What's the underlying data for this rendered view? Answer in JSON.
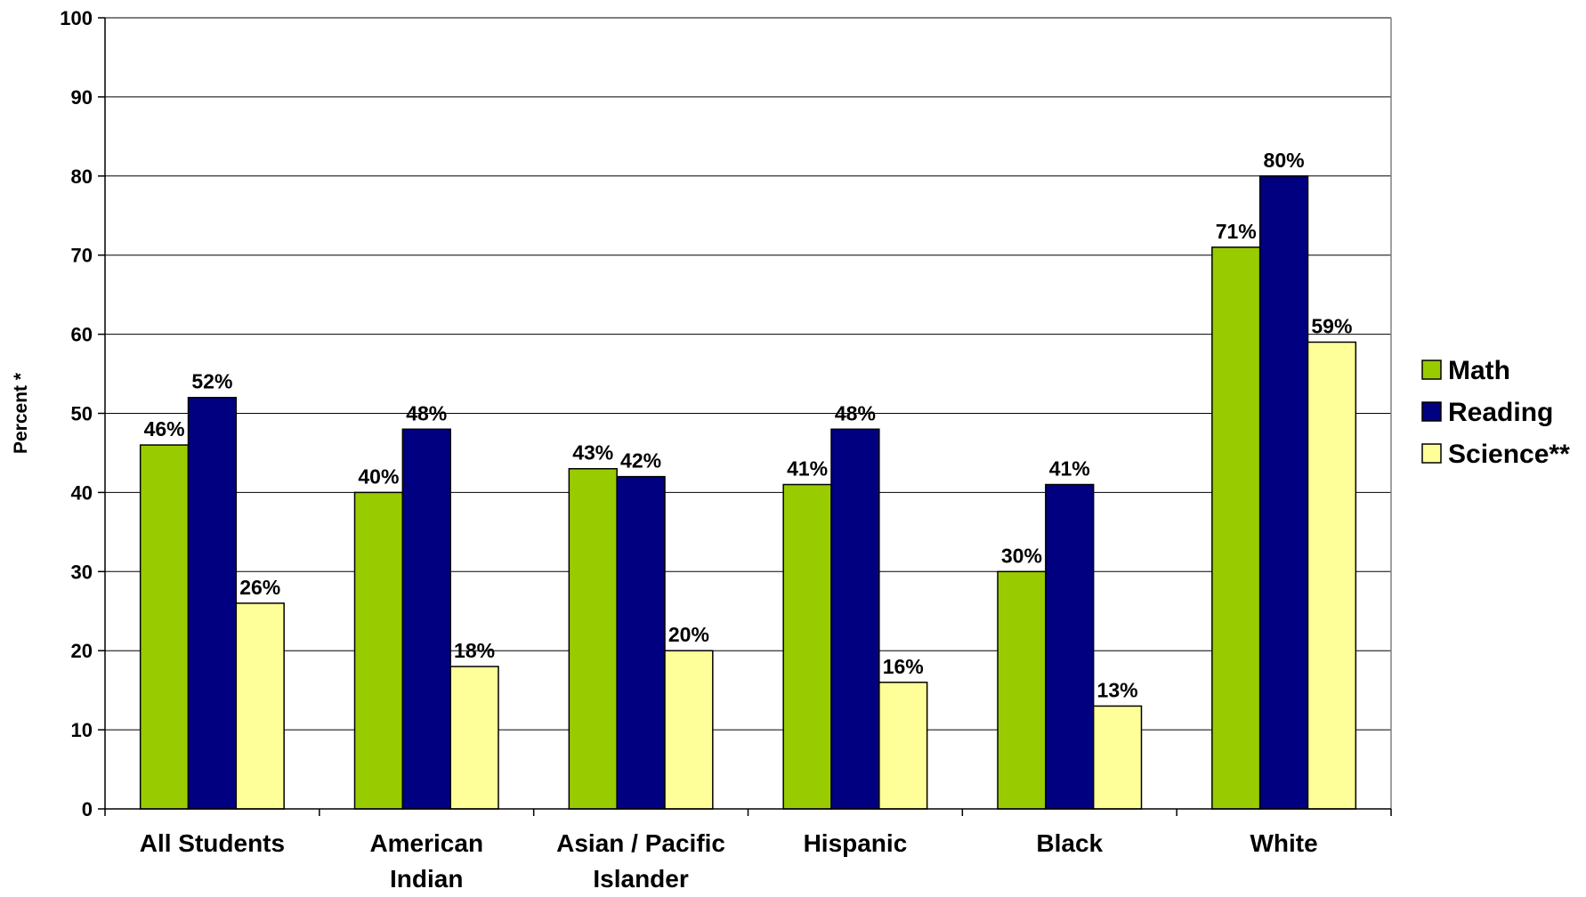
{
  "chart_data": {
    "type": "bar",
    "title": "",
    "xlabel": "",
    "ylabel": "Percent *",
    "ylim": [
      0,
      100
    ],
    "yticks": [
      0,
      10,
      20,
      30,
      40,
      50,
      60,
      70,
      80,
      90,
      100
    ],
    "grid": true,
    "legend_position": "right",
    "categories": [
      "All Students",
      "American Indian",
      "Asian / Pacific Islander",
      "Hispanic",
      "Black",
      "White"
    ],
    "category_lines": [
      [
        "All Students"
      ],
      [
        "American",
        "Indian"
      ],
      [
        "Asian / Pacific",
        "Islander"
      ],
      [
        "Hispanic"
      ],
      [
        "Black"
      ],
      [
        "White"
      ]
    ],
    "series": [
      {
        "name": "Math",
        "color": "#99CC00",
        "values": [
          46,
          40,
          43,
          41,
          30,
          71
        ],
        "labels": [
          "46%",
          "40%",
          "43%",
          "41%",
          "30%",
          "71%"
        ]
      },
      {
        "name": "Reading",
        "color": "#000080",
        "values": [
          52,
          48,
          42,
          48,
          41,
          80
        ],
        "labels": [
          "52%",
          "48%",
          "42%",
          "48%",
          "41%",
          "80%"
        ]
      },
      {
        "name": "Science**",
        "color": "#FFFF99",
        "values": [
          26,
          18,
          20,
          16,
          13,
          59
        ],
        "labels": [
          "26%",
          "18%",
          "20%",
          "16%",
          "13%",
          "59%"
        ]
      }
    ]
  }
}
